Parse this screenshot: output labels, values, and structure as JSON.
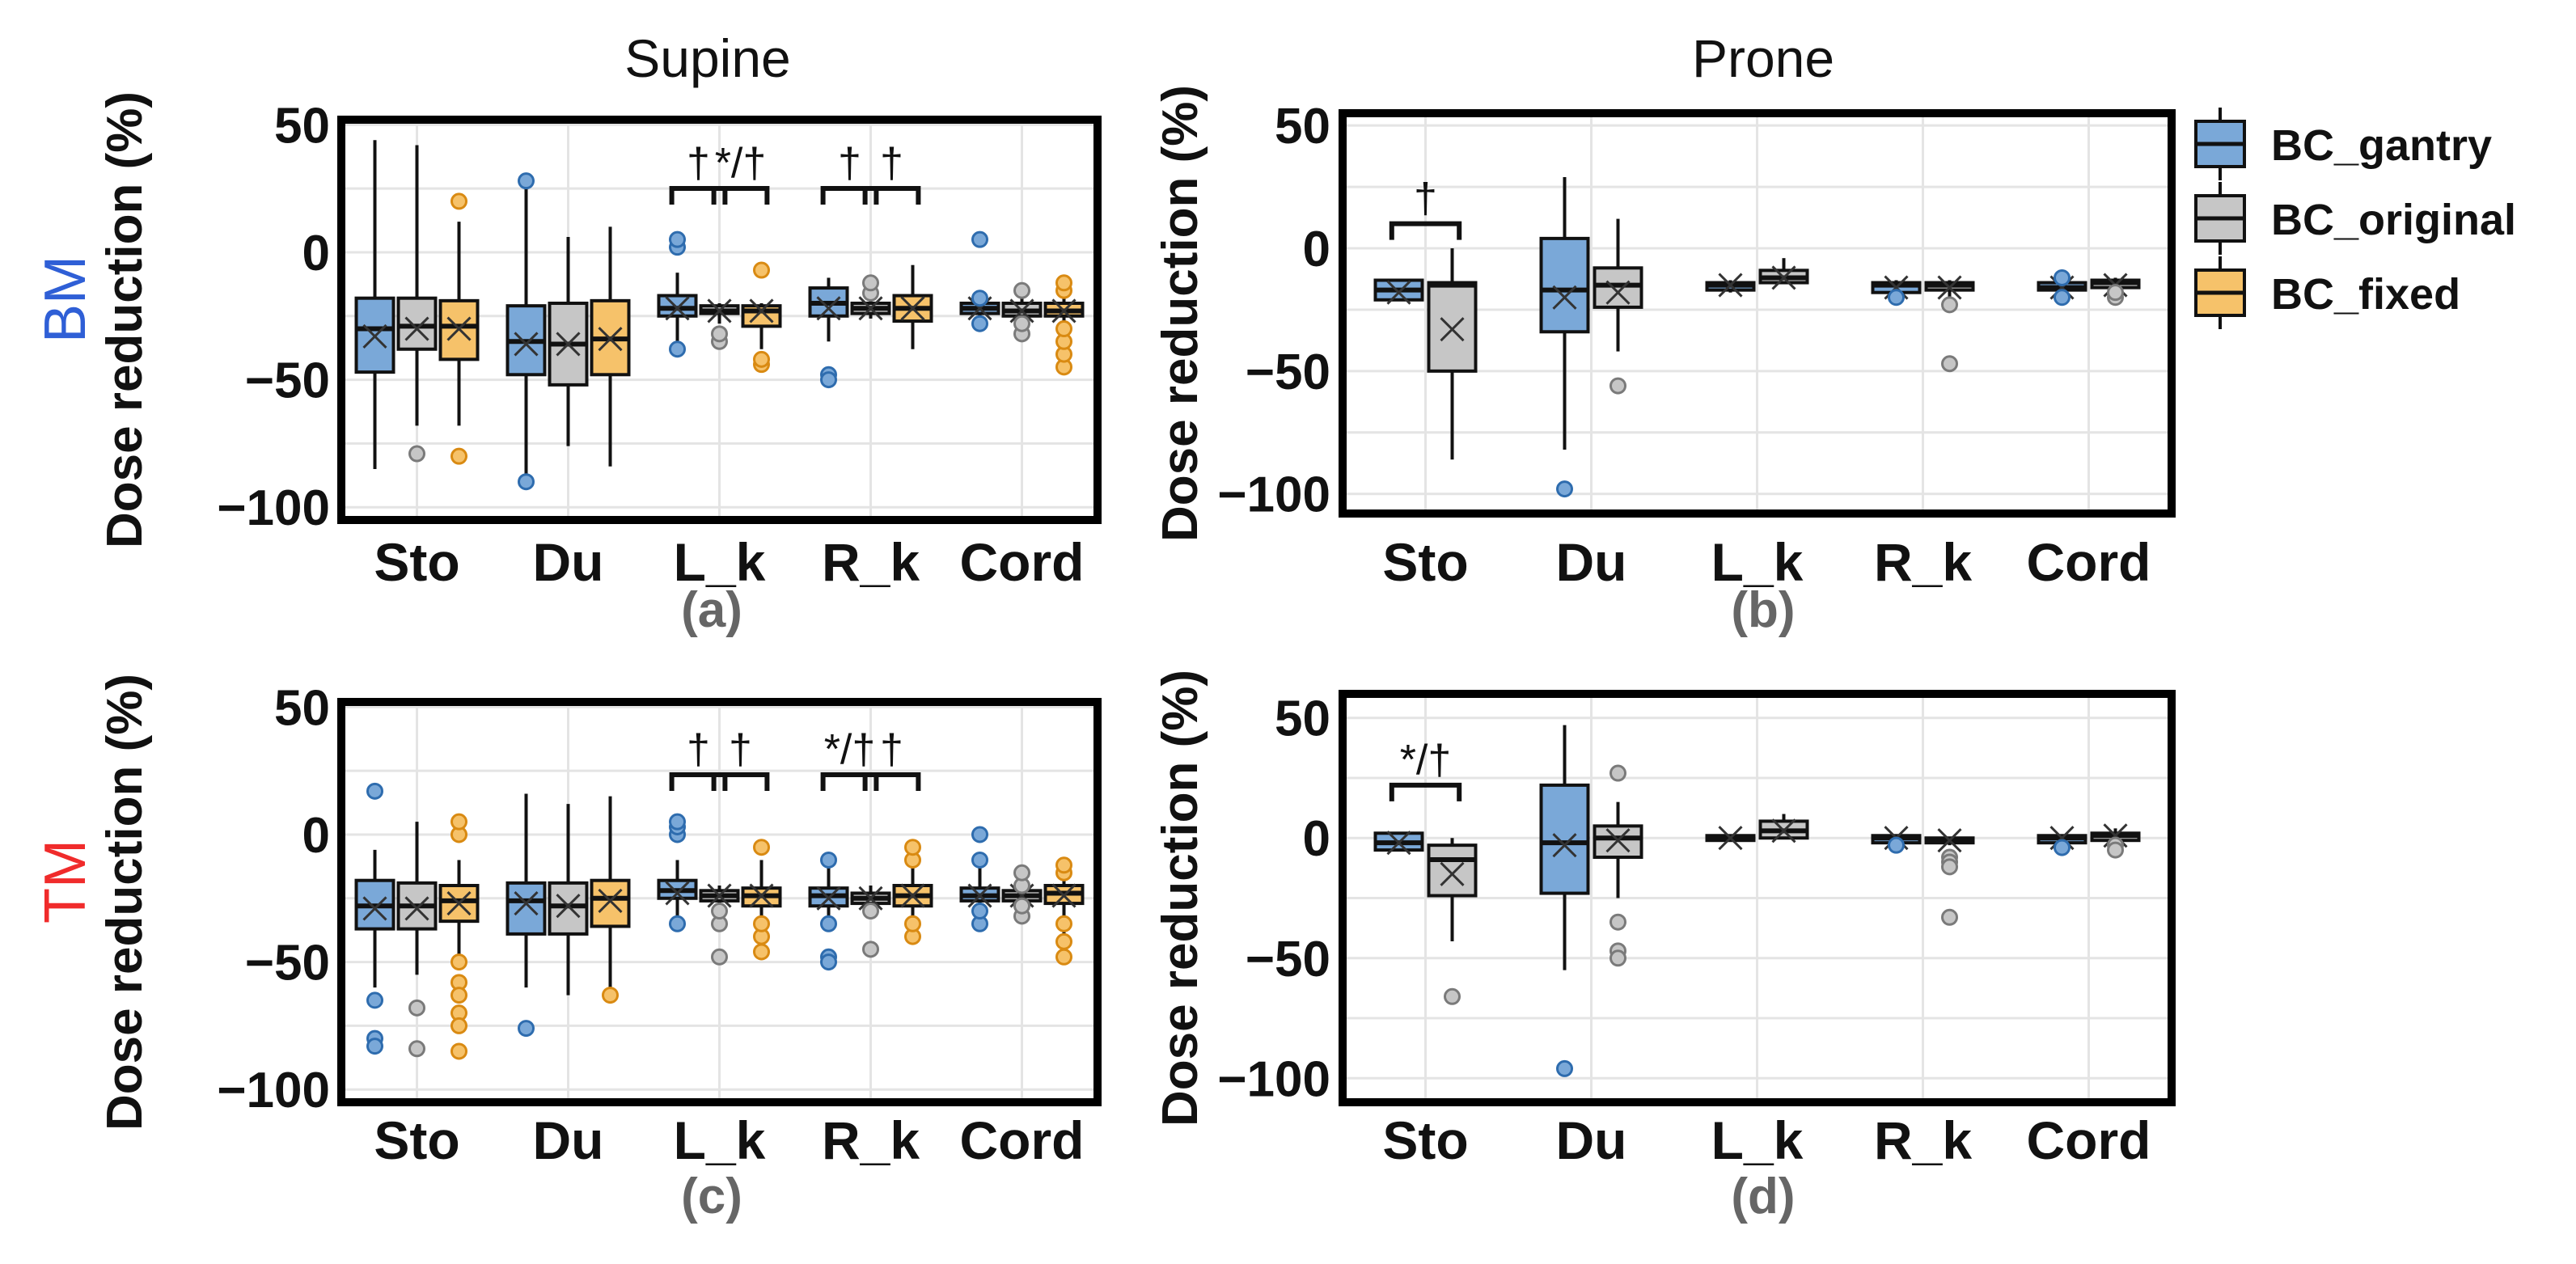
{
  "figure": {
    "col_titles": [
      "Supine",
      "Prone"
    ],
    "row_labels": [
      {
        "text": "BM",
        "color": "#2f5fd6"
      },
      {
        "text": "TM",
        "color": "#f02b2b"
      }
    ]
  },
  "legend": {
    "entries": [
      {
        "label": "BC_gantry",
        "color": "#7aa8d8"
      },
      {
        "label": "BC_original",
        "color": "#c6c6c6"
      },
      {
        "label": "BC_fixed",
        "color": "#f6c26a"
      }
    ]
  },
  "series_colors": {
    "BC_gantry": {
      "fill": "#7aa8d8",
      "edge": "#2e6cae"
    },
    "BC_original": {
      "fill": "#c6c6c6",
      "edge": "#7a7a7a"
    },
    "BC_fixed": {
      "fill": "#f6c26a",
      "edge": "#d98a12"
    }
  },
  "chart_data": [
    {
      "panel": "(a)",
      "type": "box",
      "title": "Supine",
      "ylabel": "Dose reduction (%)",
      "ylim": [
        -105,
        52
      ],
      "yticks": [
        50,
        0,
        -50,
        -100
      ],
      "ytick_labels": [
        "50",
        "0",
        "−50",
        "−100"
      ],
      "categories": [
        "Sto",
        "Du",
        "L_k",
        "R_k",
        "Cord"
      ],
      "grid": true,
      "series": [
        {
          "name": "BC_gantry",
          "boxes": [
            {
              "min": -85,
              "q1": -47,
              "median": -30,
              "q3": -18,
              "max": 44,
              "mean": -33,
              "outliers": []
            },
            {
              "min": -90,
              "q1": -48,
              "median": -35,
              "q3": -21,
              "max": 28,
              "mean": -36,
              "outliers": [
                -90,
                28
              ]
            },
            {
              "min": -40,
              "q1": -25,
              "median": -22,
              "q3": -17,
              "max": -8,
              "mean": -22,
              "outliers": [
                -38,
                2,
                5
              ]
            },
            {
              "min": -35,
              "q1": -25,
              "median": -20,
              "q3": -14,
              "max": -10,
              "mean": -22,
              "outliers": [
                -48,
                -50
              ]
            },
            {
              "min": -27,
              "q1": -24,
              "median": -22,
              "q3": -20,
              "max": -18,
              "mean": -22,
              "outliers": [
                -28,
                -18,
                5
              ]
            }
          ]
        },
        {
          "name": "BC_original",
          "boxes": [
            {
              "min": -68,
              "q1": -38,
              "median": -29,
              "q3": -18,
              "max": 42,
              "mean": -30,
              "outliers": [
                -79
              ]
            },
            {
              "min": -76,
              "q1": -52,
              "median": -36,
              "q3": -20,
              "max": 6,
              "mean": -36,
              "outliers": []
            },
            {
              "min": -28,
              "q1": -24,
              "median": -23,
              "q3": -21,
              "max": -20,
              "mean": -23,
              "outliers": [
                -35,
                -32
              ]
            },
            {
              "min": -26,
              "q1": -24,
              "median": -22,
              "q3": -20,
              "max": -10,
              "mean": -22,
              "outliers": [
                -16,
                -12
              ]
            },
            {
              "min": -32,
              "q1": -25,
              "median": -23,
              "q3": -20,
              "max": -15,
              "mean": -23,
              "outliers": [
                -32,
                -28,
                -15
              ]
            }
          ]
        },
        {
          "name": "BC_fixed",
          "boxes": [
            {
              "min": -68,
              "q1": -42,
              "median": -29,
              "q3": -19,
              "max": 12,
              "mean": -30,
              "outliers": [
                -80,
                20
              ]
            },
            {
              "min": -84,
              "q1": -48,
              "median": -34,
              "q3": -19,
              "max": 10,
              "mean": -34,
              "outliers": []
            },
            {
              "min": -38,
              "q1": -29,
              "median": -23,
              "q3": -21,
              "max": -20,
              "mean": -23,
              "outliers": [
                -44,
                -42,
                -7
              ]
            },
            {
              "min": -38,
              "q1": -27,
              "median": -22,
              "q3": -17,
              "max": -5,
              "mean": -22,
              "outliers": []
            },
            {
              "min": -45,
              "q1": -25,
              "median": -23,
              "q3": -20,
              "max": -12,
              "mean": -23,
              "outliers": [
                -45,
                -40,
                -35,
                -30,
                -15,
                -12
              ]
            }
          ]
        }
      ],
      "annotations": [
        {
          "label": "†",
          "category": "L_k",
          "from": "BC_gantry",
          "to": "BC_original"
        },
        {
          "label": "*/†",
          "category": "L_k",
          "from": "BC_original",
          "to": "BC_fixed"
        },
        {
          "label": "†",
          "category": "R_k",
          "from": "BC_gantry",
          "to": "BC_original"
        },
        {
          "label": "†",
          "category": "R_k",
          "from": "BC_original",
          "to": "BC_fixed"
        }
      ]
    },
    {
      "panel": "(b)",
      "type": "box",
      "title": "Prone",
      "ylabel": "Dose reduction (%)",
      "ylim": [
        -108,
        55
      ],
      "yticks": [
        50,
        0,
        -50,
        -100
      ],
      "ytick_labels": [
        "50",
        "0",
        "−50",
        "−100"
      ],
      "categories": [
        "Sto",
        "Du",
        "L_k",
        "R_k",
        "Cord"
      ],
      "grid": true,
      "series": [
        {
          "name": "BC_gantry",
          "boxes": [
            {
              "min": -21,
              "q1": -21,
              "median": -17,
              "q3": -13,
              "max": -13,
              "mean": -18,
              "outliers": []
            },
            {
              "min": -82,
              "q1": -34,
              "median": -17,
              "q3": 4,
              "max": 29,
              "mean": -20,
              "outliers": [
                -98
              ]
            },
            {
              "min": -18,
              "q1": -17,
              "median": -15,
              "q3": -14,
              "max": -13,
              "mean": -15,
              "outliers": []
            },
            {
              "min": -19,
              "q1": -18,
              "median": -15,
              "q3": -14,
              "max": -13,
              "mean": -16,
              "outliers": [
                -20
              ]
            },
            {
              "min": -20,
              "q1": -17,
              "median": -16,
              "q3": -14,
              "max": -12,
              "mean": -16,
              "outliers": [
                -20,
                -12
              ]
            }
          ]
        },
        {
          "name": "BC_original",
          "boxes": [
            {
              "min": -86,
              "q1": -50,
              "median": -15,
              "q3": -14,
              "max": 0,
              "mean": -33,
              "outliers": []
            },
            {
              "min": -42,
              "q1": -24,
              "median": -15,
              "q3": -8,
              "max": 12,
              "mean": -18,
              "outliers": [
                -56
              ]
            },
            {
              "min": -14,
              "q1": -14,
              "median": -12,
              "q3": -9,
              "max": -4,
              "mean": -12,
              "outliers": []
            },
            {
              "min": -20,
              "q1": -17,
              "median": -15,
              "q3": -14,
              "max": -13,
              "mean": -16,
              "outliers": [
                -23,
                -47
              ]
            },
            {
              "min": -18,
              "q1": -16,
              "median": -14,
              "q3": -13,
              "max": -12,
              "mean": -15,
              "outliers": [
                -20,
                -18
              ]
            }
          ]
        }
      ],
      "annotations": [
        {
          "label": "†",
          "category": "Sto",
          "from": "BC_gantry",
          "to": "BC_original"
        }
      ]
    },
    {
      "panel": "(c)",
      "type": "box",
      "title": "",
      "ylabel": "Dose reduction (%)",
      "ylim": [
        -105,
        52
      ],
      "yticks": [
        50,
        0,
        -50,
        -100
      ],
      "ytick_labels": [
        "50",
        "0",
        "−50",
        "−100"
      ],
      "categories": [
        "Sto",
        "Du",
        "L_k",
        "R_k",
        "Cord"
      ],
      "grid": true,
      "series": [
        {
          "name": "BC_gantry",
          "boxes": [
            {
              "min": -60,
              "q1": -37,
              "median": -28,
              "q3": -18,
              "max": -6,
              "mean": -29,
              "outliers": [
                -65,
                -80,
                -83,
                17
              ]
            },
            {
              "min": -60,
              "q1": -39,
              "median": -26,
              "q3": -19,
              "max": 16,
              "mean": -27,
              "outliers": [
                -76
              ]
            },
            {
              "min": -38,
              "q1": -25,
              "median": -22,
              "q3": -18,
              "max": -10,
              "mean": -23,
              "outliers": [
                -35,
                0,
                3,
                5
              ]
            },
            {
              "min": -38,
              "q1": -28,
              "median": -24,
              "q3": -21,
              "max": -10,
              "mean": -25,
              "outliers": [
                -48,
                -50,
                -35,
                -10
              ]
            },
            {
              "min": -35,
              "q1": -26,
              "median": -24,
              "q3": -21,
              "max": -10,
              "mean": -24,
              "outliers": [
                -35,
                -30,
                -10,
                0
              ]
            }
          ]
        },
        {
          "name": "BC_original",
          "boxes": [
            {
              "min": -55,
              "q1": -37,
              "median": -28,
              "q3": -19,
              "max": 5,
              "mean": -29,
              "outliers": [
                -68,
                -84
              ]
            },
            {
              "min": -63,
              "q1": -39,
              "median": -28,
              "q3": -19,
              "max": 12,
              "mean": -28,
              "outliers": []
            },
            {
              "min": -30,
              "q1": -26,
              "median": -24,
              "q3": -22,
              "max": -20,
              "mean": -24,
              "outliers": [
                -48,
                -35,
                -30
              ]
            },
            {
              "min": -30,
              "q1": -27,
              "median": -25,
              "q3": -23,
              "max": -20,
              "mean": -25,
              "outliers": [
                -45,
                -30
              ]
            },
            {
              "min": -32,
              "q1": -26,
              "median": -24,
              "q3": -22,
              "max": -15,
              "mean": -24,
              "outliers": [
                -32,
                -28,
                -20,
                -15
              ]
            }
          ]
        },
        {
          "name": "BC_fixed",
          "boxes": [
            {
              "min": -50,
              "q1": -34,
              "median": -26,
              "q3": -20,
              "max": -10,
              "mean": -27,
              "outliers": [
                -50,
                -58,
                -63,
                -70,
                -75,
                -85,
                0,
                5
              ]
            },
            {
              "min": -63,
              "q1": -36,
              "median": -25,
              "q3": -18,
              "max": 15,
              "mean": -26,
              "outliers": [
                -63
              ]
            },
            {
              "min": -40,
              "q1": -28,
              "median": -24,
              "q3": -21,
              "max": -10,
              "mean": -24,
              "outliers": [
                -46,
                -40,
                -35,
                -5
              ]
            },
            {
              "min": -40,
              "q1": -28,
              "median": -24,
              "q3": -20,
              "max": -5,
              "mean": -24,
              "outliers": [
                -40,
                -35,
                -10,
                -5
              ]
            },
            {
              "min": -48,
              "q1": -27,
              "median": -23,
              "q3": -20,
              "max": -12,
              "mean": -24,
              "outliers": [
                -48,
                -42,
                -35,
                -15,
                -12
              ]
            }
          ]
        }
      ],
      "annotations": [
        {
          "label": "†",
          "category": "L_k",
          "from": "BC_gantry",
          "to": "BC_original"
        },
        {
          "label": "†",
          "category": "L_k",
          "from": "BC_original",
          "to": "BC_fixed"
        },
        {
          "label": "*/†",
          "category": "R_k",
          "from": "BC_gantry",
          "to": "BC_original"
        },
        {
          "label": "†",
          "category": "R_k",
          "from": "BC_original",
          "to": "BC_fixed"
        }
      ]
    },
    {
      "panel": "(d)",
      "type": "box",
      "title": "",
      "ylabel": "Dose reduction (%)",
      "ylim": [
        -110,
        60
      ],
      "yticks": [
        50,
        0,
        -50,
        -100
      ],
      "ytick_labels": [
        "50",
        "0",
        "−50",
        "−100"
      ],
      "categories": [
        "Sto",
        "Du",
        "L_k",
        "R_k",
        "Cord"
      ],
      "grid": true,
      "series": [
        {
          "name": "BC_gantry",
          "boxes": [
            {
              "min": -5,
              "q1": -5,
              "median": -2,
              "q3": 2,
              "max": 2,
              "mean": -2,
              "outliers": []
            },
            {
              "min": -55,
              "q1": -23,
              "median": -2,
              "q3": 22,
              "max": 47,
              "mean": -3,
              "outliers": [
                -96
              ]
            },
            {
              "min": -1,
              "q1": -1,
              "median": 0,
              "q3": 1,
              "max": 1,
              "mean": 0,
              "outliers": []
            },
            {
              "min": -3,
              "q1": -2,
              "median": 0,
              "q3": 1,
              "max": 1,
              "mean": 0,
              "outliers": [
                -3
              ]
            },
            {
              "min": -4,
              "q1": -2,
              "median": 0,
              "q3": 1,
              "max": 1,
              "mean": 0,
              "outliers": [
                -4
              ]
            }
          ]
        },
        {
          "name": "BC_original",
          "boxes": [
            {
              "min": -43,
              "q1": -24,
              "median": -9,
              "q3": -3,
              "max": 0,
              "mean": -15,
              "outliers": [
                -66
              ]
            },
            {
              "min": -25,
              "q1": -8,
              "median": 0,
              "q3": 5,
              "max": 15,
              "mean": -1,
              "outliers": [
                -35,
                -47,
                -50,
                27
              ]
            },
            {
              "min": 0,
              "q1": 0,
              "median": 3,
              "q3": 7,
              "max": 10,
              "mean": 3,
              "outliers": []
            },
            {
              "min": -3,
              "q1": -2,
              "median": -1,
              "q3": 0,
              "max": 0,
              "mean": -1,
              "outliers": [
                -8,
                -10,
                -12,
                -33
              ]
            },
            {
              "min": -3,
              "q1": -1,
              "median": 1,
              "q3": 2,
              "max": 4,
              "mean": 1,
              "outliers": [
                -3,
                -5
              ]
            }
          ]
        }
      ],
      "annotations": [
        {
          "label": "*/†",
          "category": "Sto",
          "from": "BC_gantry",
          "to": "BC_original"
        }
      ]
    }
  ]
}
